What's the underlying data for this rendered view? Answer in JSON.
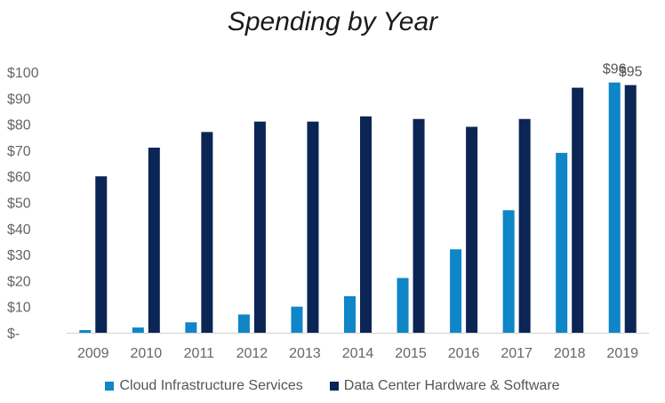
{
  "chart_data": {
    "type": "bar",
    "title": "Spending by Year",
    "categories": [
      "2009",
      "2010",
      "2011",
      "2012",
      "2013",
      "2014",
      "2015",
      "2016",
      "2017",
      "2018",
      "2019"
    ],
    "series": [
      {
        "name": "Cloud Infrastructure Services",
        "color": "#0e86c7",
        "values": [
          1,
          2,
          4,
          7,
          10,
          14,
          21,
          32,
          47,
          69,
          96
        ]
      },
      {
        "name": "Data Center Hardware & Software",
        "color": "#0b2555",
        "values": [
          60,
          71,
          77,
          81,
          81,
          83,
          82,
          79,
          82,
          94,
          95
        ]
      }
    ],
    "y_ticks": [
      "$-",
      "$10",
      "$20",
      "$30",
      "$40",
      "$50",
      "$60",
      "$70",
      "$80",
      "$90",
      "$100"
    ],
    "ylim": [
      0,
      100
    ],
    "data_labels": [
      {
        "series": 0,
        "category": "2019",
        "text": "$96"
      },
      {
        "series": 1,
        "category": "2019",
        "text": "$95"
      }
    ],
    "grid": false,
    "legend_position": "bottom"
  }
}
